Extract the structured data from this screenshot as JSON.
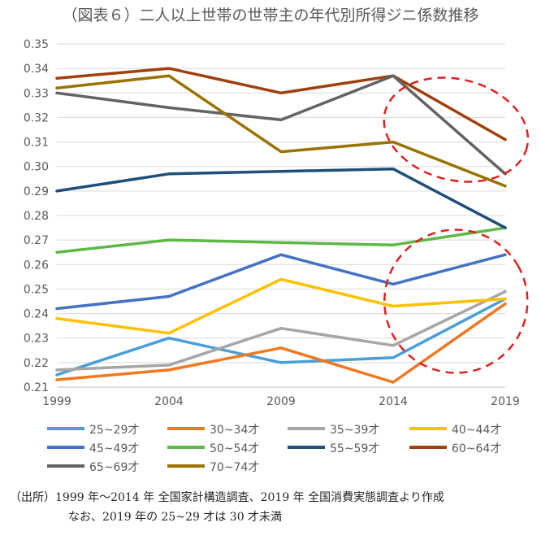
{
  "chart_data": {
    "type": "line",
    "title": "（図表６）二人以上世帯の世帯主の年代別所得ジニ係数推移",
    "x": [
      "1999",
      "2004",
      "2009",
      "2014",
      "2019"
    ],
    "ylim": [
      0.21,
      0.35
    ],
    "yticks": [
      "0.21",
      "0.22",
      "0.23",
      "0.24",
      "0.25",
      "0.26",
      "0.27",
      "0.28",
      "0.29",
      "0.30",
      "0.31",
      "0.32",
      "0.33",
      "0.34",
      "0.35"
    ],
    "grid": true,
    "legend_position": "bottom",
    "series": [
      {
        "name": "25~29才",
        "color": "#4a9fd8",
        "values": [
          0.215,
          0.23,
          0.22,
          0.222,
          0.246
        ]
      },
      {
        "name": "30~34才",
        "color": "#f07820",
        "values": [
          0.213,
          0.217,
          0.226,
          0.212,
          0.244
        ]
      },
      {
        "name": "35~39才",
        "color": "#a6a6a6",
        "values": [
          0.217,
          0.219,
          0.234,
          0.227,
          0.249
        ]
      },
      {
        "name": "40~44才",
        "color": "#ffc000",
        "values": [
          0.238,
          0.232,
          0.254,
          0.243,
          0.246
        ]
      },
      {
        "name": "45~49才",
        "color": "#4472c4",
        "values": [
          0.242,
          0.247,
          0.264,
          0.252,
          0.264
        ]
      },
      {
        "name": "50~54才",
        "color": "#5cb946",
        "values": [
          0.265,
          0.27,
          0.269,
          0.268,
          0.275
        ]
      },
      {
        "name": "55~59才",
        "color": "#1f4e79",
        "values": [
          0.29,
          0.297,
          0.298,
          0.299,
          0.275
        ]
      },
      {
        "name": "60~64才",
        "color": "#a0410d",
        "values": [
          0.336,
          0.34,
          0.33,
          0.337,
          0.311
        ]
      },
      {
        "name": "65~69才",
        "color": "#636363",
        "values": [
          0.33,
          0.324,
          0.319,
          0.337,
          0.297
        ]
      },
      {
        "name": "70~74才",
        "color": "#997300",
        "values": [
          0.332,
          0.337,
          0.306,
          0.31,
          0.292
        ]
      }
    ],
    "annotations": [
      {
        "shape": "dashed-ellipse",
        "color": "#e02020",
        "x_center": 2016.8,
        "y_center": 0.315
      },
      {
        "shape": "dashed-ellipse",
        "color": "#e02020",
        "x_center": 2016.8,
        "y_center": 0.245
      }
    ]
  },
  "source": {
    "line1": "（出所）1999 年～2014 年  全国家計構造調査、2019 年  全国消費実態調査より作成",
    "line2": "なお、2019 年の 25~29 才は 30 才未満"
  }
}
